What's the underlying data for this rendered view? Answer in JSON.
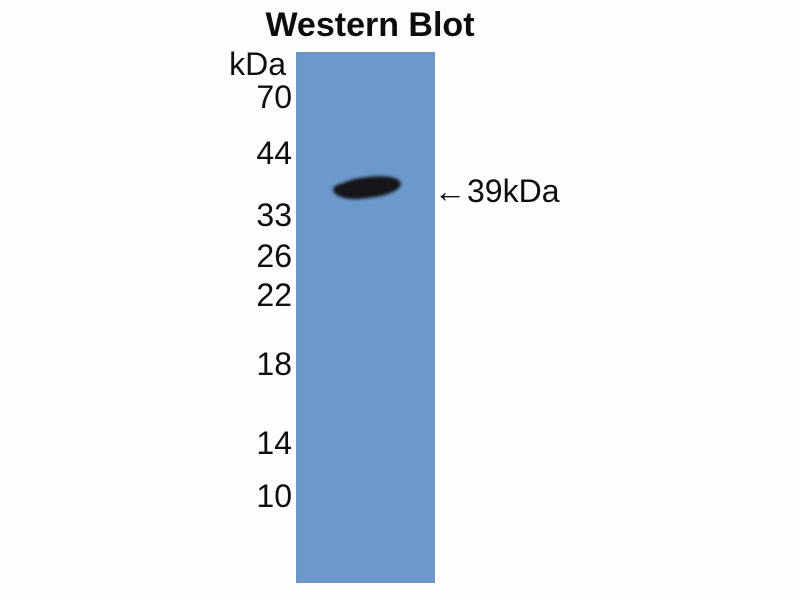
{
  "figure": {
    "title": "Western Blot",
    "unit_label": "kDa",
    "markers": [
      "70",
      "44",
      "33",
      "26",
      "22",
      "18",
      "14",
      "10"
    ],
    "band": {
      "arrow_icon": "←",
      "label": "39kDa"
    },
    "colors": {
      "lane_blue": "#6c99cb",
      "band_dark": "#15151b",
      "text": "#0e0e0e",
      "background": "#fdfdfc"
    }
  }
}
